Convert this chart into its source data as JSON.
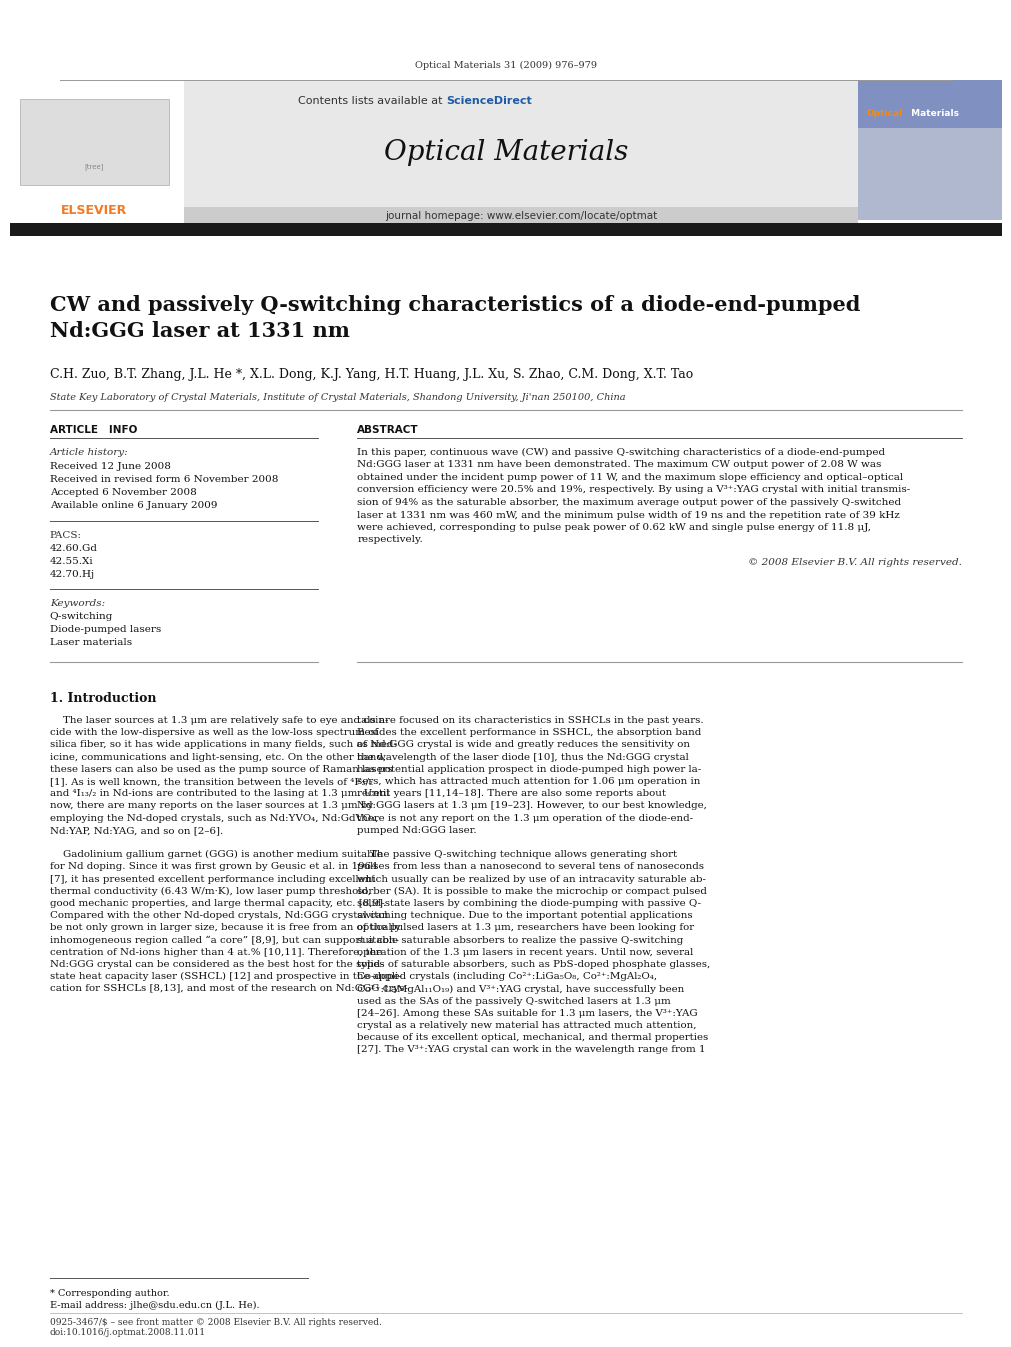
{
  "page_width": 9.92,
  "page_height": 13.23,
  "background": "#ffffff",
  "journal_ref": "Optical Materials 31 (2009) 976–979",
  "journal_name": "Optical Materials",
  "journal_url": "journal homepage: www.elsevier.com/locate/optmat",
  "contents_text": "Contents lists available at",
  "sciencedirect_text": "ScienceDirect",
  "sciencedirect_color": "#1f5ba6",
  "header_bg": "#e8e8e8",
  "thick_bar_color": "#1a1a1a",
  "title": "CW and passively Q-switching characteristics of a diode-end-pumped\nNd:GGG laser at 1331 nm",
  "authors": "C.H. Zuo, B.T. Zhang, J.L. He *, X.L. Dong, K.J. Yang, H.T. Huang, J.L. Xu, S. Zhao, C.M. Dong, X.T. Tao",
  "affiliation": "State Key Laboratory of Crystal Materials, Institute of Crystal Materials, Shandong University, Ji'nan 250100, China",
  "article_info_header": "ARTICLE   INFO",
  "abstract_header": "ABSTRACT",
  "article_history_label": "Article history:",
  "received_1": "Received 12 June 2008",
  "received_2": "Received in revised form 6 November 2008",
  "accepted": "Accepted 6 November 2008",
  "available": "Available online 6 January 2009",
  "pacs_label": "PACS:",
  "pacs_1": "42.60.Gd",
  "pacs_2": "42.55.Xi",
  "pacs_3": "42.70.Hj",
  "keywords_label": "Keywords:",
  "keyword_1": "Q-switching",
  "keyword_2": "Diode-pumped lasers",
  "keyword_3": "Laser materials",
  "abstract_text": "In this paper, continuous wave (CW) and passive Q-switching characteristics of a diode-end-pumped Nd:GGG laser at 1331 nm have been demonstrated. The maximum CW output power of 2.08 W was obtained under the incident pump power of 11 W, and the maximum slope efficiency and optical–optical conversion efficiency were 20.5% and 19%, respectively. By using a V3+:YAG crystal with initial transmission of 94% as the saturable absorber, the maximum average output power of the passively Q-switched laser at 1331 nm was 460 mW, and the minimum pulse width of 19 ns and the repetition rate of 39 kHz were achieved, corresponding to pulse peak power of 0.62 kW and single pulse energy of 11.8 μJ, respectively.",
  "copyright": "© 2008 Elsevier B.V. All rights reserved.",
  "section_title": "1. Introduction",
  "intro_col1_lines": [
    "    The laser sources at 1.3 μm are relatively safe to eye and coin-",
    "cide with the low-dispersive as well as the low-loss spectrum of",
    "silica fiber, so it has wide applications in many fields, such as med-",
    "icine, communications and light-sensing, etc. On the other hand,",
    "these lasers can also be used as the pump source of Raman lasers",
    "[1]. As is well known, the transition between the levels of ⁴F₃/₂",
    "and ⁴I₁₃/₂ in Nd-ions are contributed to the lasing at 1.3 μm. Until",
    "now, there are many reports on the laser sources at 1.3 μm by",
    "employing the Nd-doped crystals, such as Nd:YVO₄, Nd:GdVO₄,",
    "Nd:YAP, Nd:YAG, and so on [2–6].",
    "",
    "    Gadolinium gallium garnet (GGG) is another medium suitable",
    "for Nd doping. Since it was first grown by Geusic et al. in 1964",
    "[7], it has presented excellent performance including excellent",
    "thermal conductivity (6.43 W/m·K), low laser pump threshold,",
    "good mechanic properties, and large thermal capacity, etc. [8,9].",
    "Compared with the other Nd-doped crystals, Nd:GGG crystal can",
    "be not only grown in larger size, because it is free from an optically",
    "inhomogeneous region called “a core” [8,9], but can support a con-",
    "centration of Nd-ions higher than 4 at.% [10,11]. Therefore, the",
    "Nd:GGG crystal can be considered as the best host for the solid-",
    "state heat capacity laser (SSHCL) [12] and prospective in the appli-",
    "cation for SSHCLs [8,13], and most of the research on Nd:GGG crys-"
  ],
  "intro_col2_lines": [
    "tals are focused on its characteristics in SSHCLs in the past years.",
    "Besides the excellent performance in SSHCL, the absorption band",
    "of Nd:GGG crystal is wide and greatly reduces the sensitivity on",
    "the wavelength of the laser diode [10], thus the Nd:GGG crystal",
    "has potential application prospect in diode-pumped high power la-",
    "sers, which has attracted much attention for 1.06 μm operation in",
    "recent years [11,14–18]. There are also some reports about",
    "Nd:GGG lasers at 1.3 μm [19–23]. However, to our best knowledge,",
    "there is not any report on the 1.3 μm operation of the diode-end-",
    "pumped Nd:GGG laser.",
    "",
    "    The passive Q-switching technique allows generating short",
    "pulses from less than a nanosecond to several tens of nanoseconds",
    "which usually can be realized by use of an intracavity saturable ab-",
    "sorber (SA). It is possible to make the microchip or compact pulsed",
    "solid-state lasers by combining the diode-pumping with passive Q-",
    "switching technique. Due to the important potential applications",
    "of the pulsed lasers at 1.3 μm, researchers have been looking for",
    "suitable saturable absorbers to realize the passive Q-switching",
    "operation of the 1.3 μm lasers in recent years. Until now, several",
    "types of saturable absorbers, such as PbS-doped phosphate glasses,",
    "Co-doped crystals (including Co²⁺:LiGa₅O₈, Co²⁺:MgAl₂O₄,",
    "Co²⁺:LaMgAl₁₁O₁₉) and V³⁺:YAG crystal, have successfully been",
    "used as the SAs of the passively Q-switched lasers at 1.3 μm",
    "[24–26]. Among these SAs suitable for 1.3 μm lasers, the V³⁺:YAG",
    "crystal as a relatively new material has attracted much attention,",
    "because of its excellent optical, mechanical, and thermal properties",
    "[27]. The V³⁺:YAG crystal can work in the wavelength range from 1"
  ],
  "footnote_star": "* Corresponding author.",
  "footnote_email": "E-mail address: jlhe@sdu.edu.cn (J.L. He).",
  "bottom_ref": "0925-3467/$ – see front matter © 2008 Elsevier B.V. All rights reserved.",
  "bottom_doi": "doi:10.1016/j.optmat.2008.11.011",
  "elsevier_orange": "#f47920"
}
